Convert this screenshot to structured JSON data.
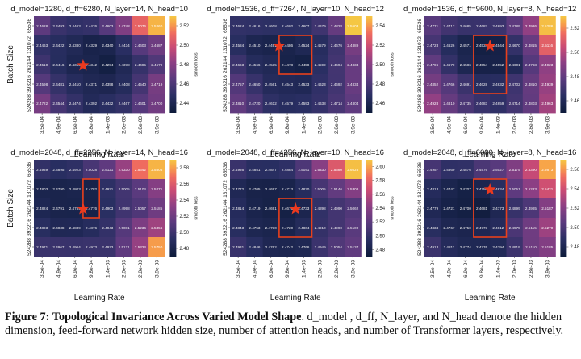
{
  "figure": {
    "caption": {
      "label": "Figure 7:",
      "title": "Topological Invariance Across Varied Model Shape",
      "body": ". d_model , d_ff, N_layer, and N_head denote the hidden dimension, feed-forward network hidden size, number of attention heads, and number of Transformer layers, respectively."
    }
  },
  "chart_data": [
    {
      "type": "heatmap",
      "title": "d_model=1280, d_ff=6280, N_layer=14, N_head=10",
      "xlabel": "Learning Rate",
      "ylabel": "Batch Size",
      "xticks": [
        "3.5e-04",
        "4.9e-04",
        "6.9e-04",
        "9.8e-04",
        "1.4e-03",
        "2.0e-03",
        "2.8e-03",
        "3.9e-03"
      ],
      "yticks": [
        "65536",
        "131072",
        "262144",
        "393216",
        "524288"
      ],
      "colorbar_label": "smooth loss",
      "colorbar_ticks": [
        "2.44",
        "2.46",
        "2.48",
        "2.50",
        "2.52"
      ],
      "vmin": 2.425,
      "vmax": 2.53,
      "star": [
        2,
        3
      ],
      "highlight": [
        [
          2,
          3,
          2,
          5
        ]
      ],
      "values": [
        [
          2.4628,
          2.4493,
          2.4463,
          2.4476,
          2.4603,
          2.4748,
          2.5076,
          2.526
        ],
        [
          2.4463,
          2.4422,
          2.438,
          2.4329,
          2.434,
          2.4434,
          2.4603,
          2.4687
        ],
        [
          2.451,
          2.4416,
          2.4355,
          2.4342,
          2.4294,
          2.4378,
          2.4485,
          2.4579
        ],
        [
          2.4598,
          2.4481,
          2.441,
          2.4371,
          2.4358,
          2.4408,
          2.454,
          2.4719
        ],
        [
          2.4722,
          2.4544,
          2.4474,
          2.4392,
          2.4432,
          2.4467,
          2.4601,
          2.47
        ]
      ]
    },
    {
      "type": "heatmap",
      "title": "d_model=1536, d_ff=7264, N_layer=10, N_head=12",
      "xlabel": "Learning Rate",
      "ylabel": "",
      "xticks": [
        "3.5e-04",
        "4.9e-04",
        "6.9e-04",
        "9.8e-04",
        "1.4e-03",
        "2.0e-03",
        "2.8e-03",
        "3.9e-03"
      ],
      "yticks": [
        "65536",
        "131072",
        "262144",
        "393216",
        "524288"
      ],
      "colorbar_label": "smooth loss",
      "colorbar_ticks": [
        "2.46",
        "2.48",
        "2.50",
        "2.52",
        "2.54"
      ],
      "vmin": 2.44,
      "vmax": 2.55,
      "star": [
        1,
        3
      ],
      "highlight": [
        [
          1,
          3,
          3,
          5
        ]
      ],
      "values": [
        [
          2.4624,
          2.4616,
          2.4608,
          2.4602,
          2.4607,
          2.4679,
          2.4828,
          2.5503
        ],
        [
          2.4584,
          2.451,
          2.4491,
          2.4486,
          2.4524,
          2.4579,
          2.4676,
          2.4889
        ],
        [
          2.4663,
          2.4566,
          2.4535,
          2.4478,
          2.4458,
          2.4599,
          2.4694,
          2.4834
        ],
        [
          2.4757,
          2.465,
          2.4561,
          2.4543,
          2.4533,
          2.4623,
          2.4692,
          2.4834
        ],
        [
          2.481,
          2.472,
          2.4612,
          2.4579,
          2.4593,
          2.4638,
          2.4714,
          2.4804
        ]
      ]
    },
    {
      "type": "heatmap",
      "title": "d_model=1536, d_ff=9600, N_layer=8, N_head=12",
      "xlabel": "Learning Rate",
      "ylabel": "",
      "xticks": [
        "3.5e-04",
        "4.9e-04",
        "6.9e-04",
        "9.8e-04",
        "1.4e-03",
        "2.0e-03",
        "2.8e-03",
        "3.9e-03"
      ],
      "yticks": [
        "65536",
        "131072",
        "262144",
        "393216",
        "524288"
      ],
      "colorbar_label": "smooth loss",
      "colorbar_ticks": [
        "2.46",
        "2.48",
        "2.50",
        "2.52"
      ],
      "vmin": 2.45,
      "vmax": 2.53,
      "star": [
        1,
        4
      ],
      "highlight": [
        [
          1,
          3,
          4,
          5
        ]
      ],
      "values": [
        [
          2.4771,
          2.4712,
          2.4685,
          2.4687,
          2.4693,
          2.4789,
          2.4926,
          2.5286
        ],
        [
          2.4723,
          2.4626,
          2.4571,
          2.4534,
          2.4544,
          2.467,
          2.4815,
          2.5116
        ],
        [
          2.4796,
          2.467,
          2.4586,
          2.4554,
          2.4552,
          2.4601,
          2.4768,
          2.4923
        ],
        [
          2.4852,
          2.4766,
          2.4691,
          2.4628,
          2.4632,
          2.4702,
          2.481,
          2.4939
        ],
        [
          2.4928,
          2.481,
          2.4735,
          2.4683,
          2.4659,
          2.4714,
          2.4803,
          2.4963
        ]
      ]
    },
    {
      "type": "heatmap",
      "title": "d_model=2048, d_ff=2256, N_layer=14, N_head=16",
      "xlabel": "Learning Rate",
      "ylabel": "Batch Size",
      "xticks": [
        "3.5e-04",
        "4.9e-04",
        "6.9e-04",
        "9.8e-04",
        "1.4e-03",
        "2.0e-03",
        "2.8e-03",
        "3.9e-03"
      ],
      "yticks": [
        "65536",
        "131072",
        "262144",
        "393216",
        "524288"
      ],
      "colorbar_label": "smooth loss",
      "colorbar_ticks": [
        "2.48",
        "2.50",
        "2.52",
        "2.54",
        "2.56",
        "2.58"
      ],
      "vmin": 2.47,
      "vmax": 2.585,
      "star": [
        2,
        3
      ],
      "highlight": [
        [
          1,
          3,
          3,
          4
        ]
      ],
      "values": [
        [
          2.4939,
          2.4895,
          2.4923,
          2.5028,
          2.5121,
          2.533,
          2.5642,
          2.5805
        ],
        [
          2.4803,
          2.479,
          2.4803,
          2.4782,
          2.4921,
          2.5005,
          2.5104,
          2.5271
        ],
        [
          2.4824,
          2.4791,
          2.4789,
          2.4776,
          2.4903,
          2.4998,
          2.5057,
          2.5185
        ],
        [
          2.4893,
          2.4838,
          2.4839,
          2.4876,
          2.4943,
          2.5081,
          2.5236,
          2.5356
        ],
        [
          2.4971,
          2.4967,
          2.4964,
          2.4973,
          2.4973,
          2.5121,
          2.5324,
          2.575
        ]
      ]
    },
    {
      "type": "heatmap",
      "title": "d_model=2048, d_ff=4256, N_layer=10, N_head=16",
      "xlabel": "Learning Rate",
      "ylabel": "",
      "xticks": [
        "3.5e-04",
        "4.9e-04",
        "6.9e-04",
        "9.8e-04",
        "1.4e-03",
        "2.0e-03",
        "2.8e-03",
        "3.9e-03"
      ],
      "yticks": [
        "65536",
        "131072",
        "262144",
        "393216",
        "524288"
      ],
      "colorbar_label": "smooth loss",
      "colorbar_ticks": [
        "2.48",
        "2.50",
        "2.52",
        "2.54",
        "2.56",
        "2.58",
        "2.60"
      ],
      "vmin": 2.46,
      "vmax": 2.605,
      "star": [
        2,
        4
      ],
      "highlight": [
        [
          2,
          3,
          4,
          5
        ]
      ],
      "values": [
        [
          2.4936,
          2.4851,
          2.4847,
          2.4884,
          2.5041,
          2.533,
          2.568,
          2.6026
        ],
        [
          2.4772,
          2.4705,
          2.4697,
          2.4713,
          2.482,
          2.5005,
          2.5146,
          2.5308
        ],
        [
          2.4814,
          2.4719,
          2.4691,
          2.4676,
          2.4733,
          2.4898,
          2.499,
          2.5062
        ],
        [
          2.4843,
          2.4753,
          2.473,
          2.472,
          2.4804,
          2.491,
          2.499,
          2.51
        ],
        [
          2.4931,
          2.4846,
          2.4762,
          2.4742,
          2.4766,
          2.4949,
          2.5054,
          2.5137
        ]
      ]
    },
    {
      "type": "heatmap",
      "title": "d_model=2048, d_ff=6000, N_layer=8, N_head=16",
      "xlabel": "Learning Rate",
      "ylabel": "",
      "xticks": [
        "3.5e-04",
        "4.9e-04",
        "6.9e-04",
        "9.8e-04",
        "1.4e-03",
        "2.0e-03",
        "2.8e-03",
        "3.9e-03"
      ],
      "yticks": [
        "65536",
        "131072",
        "262144",
        "393216",
        "524288"
      ],
      "colorbar_label": "smooth loss",
      "colorbar_ticks": [
        "2.48",
        "2.50",
        "2.52",
        "2.54",
        "2.56"
      ],
      "vmin": 2.465,
      "vmax": 2.575,
      "star": [
        1,
        4
      ],
      "highlight": [
        [
          1,
          3,
          4,
          5
        ]
      ],
      "values": [
        [
          2.4957,
          2.4869,
          2.4876,
          2.4976,
          2.5027,
          2.5175,
          2.539,
          2.5673
        ],
        [
          2.4813,
          2.4747,
          2.4707,
          2.475,
          2.4834,
          2.5051,
          2.5223,
          2.5421
        ],
        [
          2.4779,
          2.4721,
          2.47,
          2.4681,
          2.4773,
          2.4899,
          2.4985,
          2.5187
        ],
        [
          2.4834,
          2.4767,
          2.475,
          2.4773,
          2.4812,
          2.4975,
          2.5115,
          2.527
        ],
        [
          2.4913,
          2.4811,
          2.4774,
          2.4776,
          2.4794,
          2.4919,
          2.511,
          2.5185
        ]
      ]
    }
  ]
}
